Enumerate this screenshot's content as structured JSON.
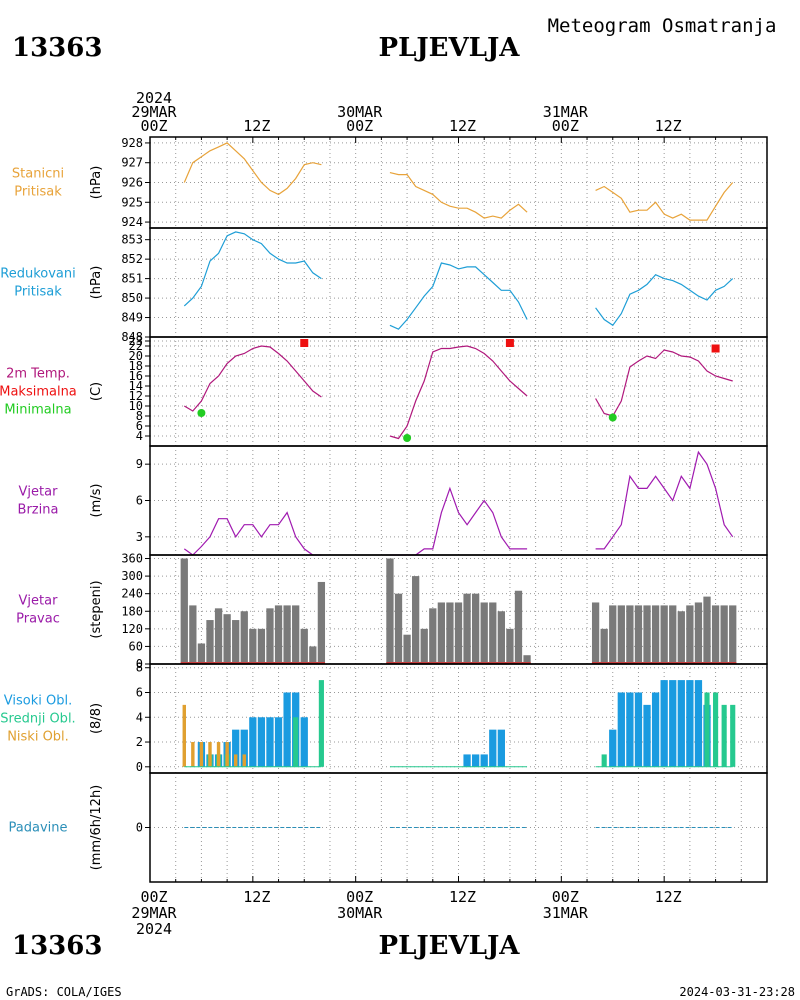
{
  "header": {
    "station_id": "13363",
    "station_name": "PLJEVLJA",
    "subtitle": "Meteogram Osmatranja"
  },
  "footer": {
    "station_id": "13363",
    "station_name": "PLJEVLJA",
    "credit": "GrADS: COLA/IGES",
    "timestamp": "2024-03-31-23:28"
  },
  "time_axis": {
    "top_labels": [
      {
        "hour": 0,
        "lines": [
          "2024",
          "29MAR",
          "00Z"
        ]
      },
      {
        "hour": 12,
        "lines": [
          "12Z"
        ]
      },
      {
        "hour": 24,
        "lines": [
          "30MAR",
          "00Z"
        ]
      },
      {
        "hour": 36,
        "lines": [
          "12Z"
        ]
      },
      {
        "hour": 48,
        "lines": [
          "31MAR",
          "00Z"
        ]
      },
      {
        "hour": 60,
        "lines": [
          "12Z"
        ]
      }
    ],
    "bottom_labels": [
      {
        "hour": 0,
        "lines": [
          "00Z",
          "29MAR",
          "2024"
        ]
      },
      {
        "hour": 12,
        "lines": [
          "12Z"
        ]
      },
      {
        "hour": 24,
        "lines": [
          "00Z",
          "30MAR"
        ]
      },
      {
        "hour": 36,
        "lines": [
          "12Z"
        ]
      },
      {
        "hour": 48,
        "lines": [
          "00Z",
          "31MAR"
        ]
      },
      {
        "hour": 60,
        "lines": [
          "12Z"
        ]
      }
    ]
  },
  "colors": {
    "pressure_station": "#e8a33a",
    "pressure_reduced": "#1e9ed6",
    "temp": "#b0187c",
    "tmax": "#ee1111",
    "tmin": "#22cc22",
    "wind_speed": "#a01ab0",
    "wind_dir_bar": "#7a7a7a",
    "wind_dir_base": "#c83c3c",
    "cloud_high": "#1a9be0",
    "cloud_mid": "#26c98f",
    "cloud_low": "#e0a030",
    "precip": "#2b8fb8",
    "label_wind": "#9a1aa8"
  },
  "chart_data": [
    {
      "type": "line",
      "panel": "station_pressure",
      "label_lines": [
        "Stanicni",
        "Pritisak"
      ],
      "label_colors": [
        "#e8a33a",
        "#e8a33a"
      ],
      "unit": "(hPa)",
      "ylim": [
        923.7,
        928.3
      ],
      "yticks": [
        924,
        925,
        926,
        927,
        928
      ],
      "series": [
        {
          "x": [
            4,
            5,
            6,
            7,
            8,
            9,
            10,
            11,
            12,
            13,
            14,
            15,
            16,
            17,
            18,
            19,
            20
          ],
          "y": [
            926.0,
            927.0,
            927.3,
            927.6,
            927.8,
            928.0,
            927.6,
            927.2,
            926.6,
            926.0,
            925.6,
            925.4,
            925.7,
            926.2,
            926.9,
            927.0,
            926.9
          ]
        },
        {
          "x": [
            28,
            29,
            30,
            31,
            32,
            33,
            34,
            35,
            36,
            37,
            38,
            39,
            40,
            41,
            42,
            43,
            44
          ],
          "y": [
            926.5,
            926.4,
            926.4,
            925.8,
            925.6,
            925.4,
            925.0,
            924.8,
            924.7,
            924.7,
            924.5,
            924.2,
            924.3,
            924.2,
            924.6,
            924.9,
            924.5
          ]
        },
        {
          "x": [
            52,
            53,
            54,
            55,
            56,
            57,
            58,
            59,
            60,
            61,
            62,
            63,
            64,
            65,
            66,
            67,
            68
          ],
          "y": [
            925.6,
            925.8,
            925.5,
            925.2,
            924.5,
            924.6,
            924.6,
            925.0,
            924.4,
            924.2,
            924.4,
            924.1,
            924.1,
            924.1,
            924.8,
            925.5,
            926.0
          ]
        }
      ]
    },
    {
      "type": "line",
      "panel": "reduced_pressure",
      "label_lines": [
        "Redukovani",
        "Pritisak"
      ],
      "label_colors": [
        "#1e9ed6",
        "#1e9ed6"
      ],
      "unit": "(hPa)",
      "ylim": [
        848,
        853.6
      ],
      "yticks": [
        848,
        849,
        850,
        851,
        852,
        853
      ],
      "series": [
        {
          "x": [
            4,
            5,
            6,
            7,
            8,
            9,
            10,
            11,
            12,
            13,
            14,
            15,
            16,
            17,
            18,
            19,
            20
          ],
          "y": [
            849.6,
            850.0,
            850.6,
            851.9,
            852.3,
            853.2,
            853.4,
            853.3,
            853.0,
            852.8,
            852.3,
            852.0,
            851.8,
            851.8,
            851.9,
            851.3,
            851.0
          ]
        },
        {
          "x": [
            28,
            29,
            30,
            31,
            32,
            33,
            34,
            35,
            36,
            37,
            38,
            39,
            40,
            41,
            42,
            43,
            44
          ],
          "y": [
            848.6,
            848.4,
            848.9,
            849.5,
            850.1,
            850.6,
            851.8,
            851.7,
            851.5,
            851.6,
            851.6,
            851.2,
            850.8,
            850.4,
            850.4,
            849.8,
            848.9
          ]
        },
        {
          "x": [
            52,
            53,
            54,
            55,
            56,
            57,
            58,
            59,
            60,
            61,
            62,
            63,
            64,
            65,
            66,
            67,
            68
          ],
          "y": [
            849.5,
            848.9,
            848.6,
            849.2,
            850.2,
            850.4,
            850.7,
            851.2,
            851.0,
            850.9,
            850.7,
            850.4,
            850.1,
            849.9,
            850.4,
            850.6,
            851.0
          ]
        }
      ]
    },
    {
      "type": "line",
      "panel": "temperature",
      "label_lines": [
        "2m Temp.",
        "Maksimalna",
        "Minimalna"
      ],
      "label_colors": [
        "#b0187c",
        "#ee1111",
        "#22cc22"
      ],
      "unit": "(C)",
      "ylim": [
        2,
        23.8
      ],
      "yticks": [
        4,
        6,
        8,
        10,
        12,
        14,
        16,
        18,
        20,
        22,
        23
      ],
      "series": [
        {
          "x": [
            4,
            5,
            6,
            7,
            8,
            9,
            10,
            11,
            12,
            13,
            14,
            15,
            16,
            17,
            18,
            19,
            20
          ],
          "y": [
            10.0,
            9.0,
            11.0,
            14.5,
            16.0,
            18.5,
            20.0,
            20.5,
            21.5,
            22.0,
            21.8,
            20.5,
            19.0,
            17.0,
            15.0,
            13.0,
            11.8
          ]
        },
        {
          "x": [
            28,
            29,
            30,
            31,
            32,
            33,
            34,
            35,
            36,
            37,
            38,
            39,
            40,
            41,
            42,
            43,
            44
          ],
          "y": [
            4.0,
            3.5,
            6.0,
            11.0,
            15.0,
            20.8,
            21.5,
            21.5,
            21.8,
            22.0,
            21.5,
            20.5,
            19.0,
            17.0,
            15.0,
            13.5,
            12.0
          ]
        },
        {
          "x": [
            52,
            53,
            54,
            55,
            56,
            57,
            58,
            59,
            60,
            61,
            62,
            63,
            64,
            65,
            66,
            67,
            68
          ],
          "y": [
            11.5,
            8.5,
            8.0,
            11.0,
            17.8,
            19.0,
            20.0,
            19.5,
            21.2,
            20.8,
            20.0,
            19.8,
            19.0,
            17.0,
            16.0,
            15.5,
            15.0
          ]
        }
      ],
      "max_markers": [
        {
          "x": 18,
          "y": 22.6
        },
        {
          "x": 42,
          "y": 22.6
        },
        {
          "x": 66,
          "y": 21.5
        }
      ],
      "min_markers": [
        {
          "x": 6,
          "y": 8.6
        },
        {
          "x": 30,
          "y": 3.6
        },
        {
          "x": 54,
          "y": 7.7
        }
      ]
    },
    {
      "type": "line",
      "panel": "wind_speed",
      "label_lines": [
        "Vjetar",
        "Brzina"
      ],
      "label_colors": [
        "#9a1aa8",
        "#9a1aa8"
      ],
      "unit": "(m/s)",
      "ylim": [
        1.5,
        10.5
      ],
      "yticks": [
        3,
        6,
        9
      ],
      "series": [
        {
          "x": [
            4,
            5,
            6,
            7,
            8,
            9,
            10,
            11,
            12,
            13,
            14,
            15,
            16,
            17,
            18,
            19,
            20
          ],
          "y": [
            2.0,
            1.5,
            2.2,
            3.0,
            4.5,
            4.5,
            3.0,
            4.0,
            4.0,
            3.0,
            4.0,
            4.0,
            5.0,
            3.0,
            2.0,
            1.5,
            1.5
          ]
        },
        {
          "x": [
            28,
            29,
            30,
            31,
            32,
            33,
            34,
            35,
            36,
            37,
            38,
            39,
            40,
            41,
            42,
            43,
            44
          ],
          "y": [
            1.5,
            1.5,
            1.5,
            1.5,
            2.0,
            2.0,
            5.0,
            7.0,
            5.0,
            4.0,
            5.0,
            6.0,
            5.0,
            3.0,
            2.0,
            2.0,
            2.0
          ]
        },
        {
          "x": [
            52,
            53,
            54,
            55,
            56,
            57,
            58,
            59,
            60,
            61,
            62,
            63,
            64,
            65,
            66,
            67,
            68
          ],
          "y": [
            2.0,
            2.0,
            3.0,
            4.0,
            8.0,
            7.0,
            7.0,
            8.0,
            7.0,
            6.0,
            8.0,
            7.0,
            10.0,
            9.0,
            7.0,
            4.0,
            3.0
          ]
        }
      ]
    },
    {
      "type": "bar",
      "panel": "wind_direction",
      "label_lines": [
        "Vjetar",
        "Pravac"
      ],
      "label_colors": [
        "#9a1aa8",
        "#9a1aa8"
      ],
      "unit": "(stepeni)",
      "ylim": [
        0,
        372
      ],
      "yticks": [
        0,
        60,
        120,
        180,
        240,
        300,
        360
      ],
      "x": [
        4,
        5,
        6,
        7,
        8,
        9,
        10,
        11,
        12,
        13,
        14,
        15,
        16,
        17,
        18,
        19,
        20,
        28,
        29,
        30,
        31,
        32,
        33,
        34,
        35,
        36,
        37,
        38,
        39,
        40,
        41,
        42,
        43,
        44,
        52,
        53,
        54,
        55,
        56,
        57,
        58,
        59,
        60,
        61,
        62,
        63,
        64,
        65,
        66,
        67,
        68
      ],
      "values": [
        360,
        200,
        70,
        150,
        190,
        170,
        150,
        180,
        120,
        120,
        190,
        200,
        200,
        200,
        120,
        60,
        280,
        360,
        240,
        100,
        300,
        120,
        190,
        210,
        210,
        210,
        240,
        240,
        210,
        210,
        180,
        120,
        250,
        30,
        210,
        120,
        200,
        200,
        200,
        200,
        200,
        200,
        200,
        200,
        180,
        200,
        210,
        230,
        200,
        200,
        200
      ]
    },
    {
      "type": "bar",
      "panel": "cloud_cover",
      "label_lines": [
        "Visoki Obl.",
        "Srednji Obl.",
        "Niski Obl."
      ],
      "label_colors": [
        "#1a9be0",
        "#26c98f",
        "#e0a030"
      ],
      "unit": "(8/8)",
      "ylim": [
        -0.5,
        8.3
      ],
      "yticks": [
        0,
        2,
        4,
        6,
        8
      ],
      "series": [
        {
          "name": "Visoki Obl.",
          "x": [
            6,
            7,
            8,
            9,
            10,
            11,
            12,
            13,
            14,
            15,
            16,
            17,
            18,
            37,
            38,
            39,
            40,
            41,
            54,
            55,
            56,
            57,
            58,
            59,
            60,
            61,
            62,
            63,
            64,
            65
          ],
          "values": [
            2,
            1,
            1,
            2,
            3,
            3,
            4,
            4,
            4,
            4,
            6,
            6,
            4,
            1,
            1,
            1,
            3,
            3,
            3,
            6,
            6,
            6,
            5,
            6,
            7,
            7,
            7,
            7,
            7,
            5
          ]
        },
        {
          "name": "Srednji Obl.",
          "x": [
            7,
            8,
            9,
            17,
            20,
            53,
            65,
            66,
            67,
            68
          ],
          "values": [
            1,
            1,
            1,
            4,
            7,
            1,
            6,
            6,
            5,
            5
          ]
        },
        {
          "name": "Niski Obl.",
          "x": [
            4,
            5,
            6,
            7,
            8,
            9,
            10,
            11
          ],
          "values": [
            5,
            2,
            2,
            2,
            2,
            2,
            1,
            1
          ]
        }
      ]
    },
    {
      "type": "line",
      "panel": "precipitation",
      "label_lines": [
        "Padavine"
      ],
      "label_colors": [
        "#2b8fb8"
      ],
      "unit": "(mm/6h/12h)",
      "ylim": [
        -3,
        3
      ],
      "yticks": [
        0
      ],
      "series": [
        {
          "x": [
            4,
            20
          ],
          "y": [
            0,
            0
          ]
        },
        {
          "x": [
            28,
            44
          ],
          "y": [
            0,
            0
          ]
        },
        {
          "x": [
            52,
            68
          ],
          "y": [
            0,
            0
          ]
        }
      ]
    }
  ]
}
